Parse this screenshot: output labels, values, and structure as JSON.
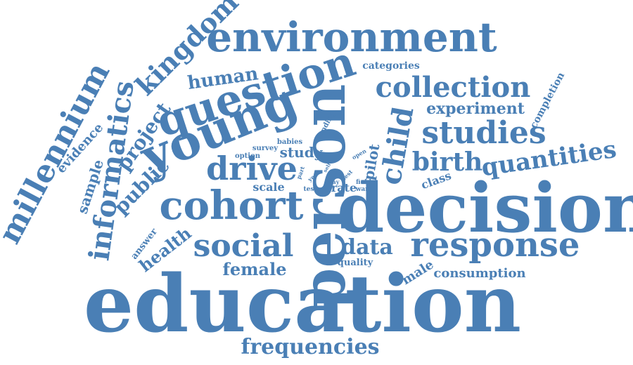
{
  "theme": {
    "word_color": "#4a7fb5",
    "background": "#ffffff"
  },
  "words": [
    {
      "id": "education",
      "text": "education"
    },
    {
      "id": "decision",
      "text": "decision"
    },
    {
      "id": "person",
      "text": "person"
    },
    {
      "id": "environment",
      "text": "environment"
    },
    {
      "id": "young",
      "text": "young"
    },
    {
      "id": "question",
      "text": "question"
    },
    {
      "id": "cohort",
      "text": "cohort"
    },
    {
      "id": "response",
      "text": "response"
    },
    {
      "id": "studies",
      "text": "studies"
    },
    {
      "id": "collection",
      "text": "collection"
    },
    {
      "id": "millennium",
      "text": "millennium"
    },
    {
      "id": "informatics",
      "text": "informatics"
    },
    {
      "id": "kingdom",
      "text": "kingdom"
    },
    {
      "id": "social",
      "text": "social"
    },
    {
      "id": "child",
      "text": "child"
    },
    {
      "id": "drive",
      "text": "drive"
    },
    {
      "id": "quantities",
      "text": "quantities"
    },
    {
      "id": "birth",
      "text": "birth"
    },
    {
      "id": "frequencies",
      "text": "frequencies"
    },
    {
      "id": "project",
      "text": "project"
    },
    {
      "id": "public",
      "text": "public"
    },
    {
      "id": "data",
      "text": "data"
    },
    {
      "id": "human",
      "text": "human"
    },
    {
      "id": "female",
      "text": "female"
    },
    {
      "id": "health",
      "text": "health"
    },
    {
      "id": "experiment",
      "text": "experiment"
    },
    {
      "id": "sample",
      "text": "sample"
    },
    {
      "id": "evidence",
      "text": "evidence"
    },
    {
      "id": "consumption",
      "text": "consumption"
    },
    {
      "id": "study",
      "text": "study"
    },
    {
      "id": "pilot",
      "text": "pilot"
    },
    {
      "id": "completion",
      "text": "completion"
    },
    {
      "id": "categories",
      "text": "categories"
    },
    {
      "id": "class",
      "text": "class"
    },
    {
      "id": "male",
      "text": "male"
    },
    {
      "id": "scale",
      "text": "scale"
    },
    {
      "id": "rate",
      "text": "rate"
    },
    {
      "id": "answer",
      "text": "answer"
    },
    {
      "id": "quality",
      "text": "quality"
    },
    {
      "id": "babies",
      "text": "babies"
    },
    {
      "id": "survey",
      "text": "survey"
    },
    {
      "id": "option",
      "text": "option"
    },
    {
      "id": "funding",
      "text": "funding"
    },
    {
      "id": "test",
      "text": "test"
    },
    {
      "id": "field",
      "text": "field"
    },
    {
      "id": "ward",
      "text": "ward"
    },
    {
      "id": "year",
      "text": "year"
    },
    {
      "id": "self",
      "text": "self"
    },
    {
      "id": "way",
      "text": "way"
    },
    {
      "id": "best",
      "text": "best"
    },
    {
      "id": "open",
      "text": "open"
    },
    {
      "id": "part",
      "text": "part"
    }
  ]
}
